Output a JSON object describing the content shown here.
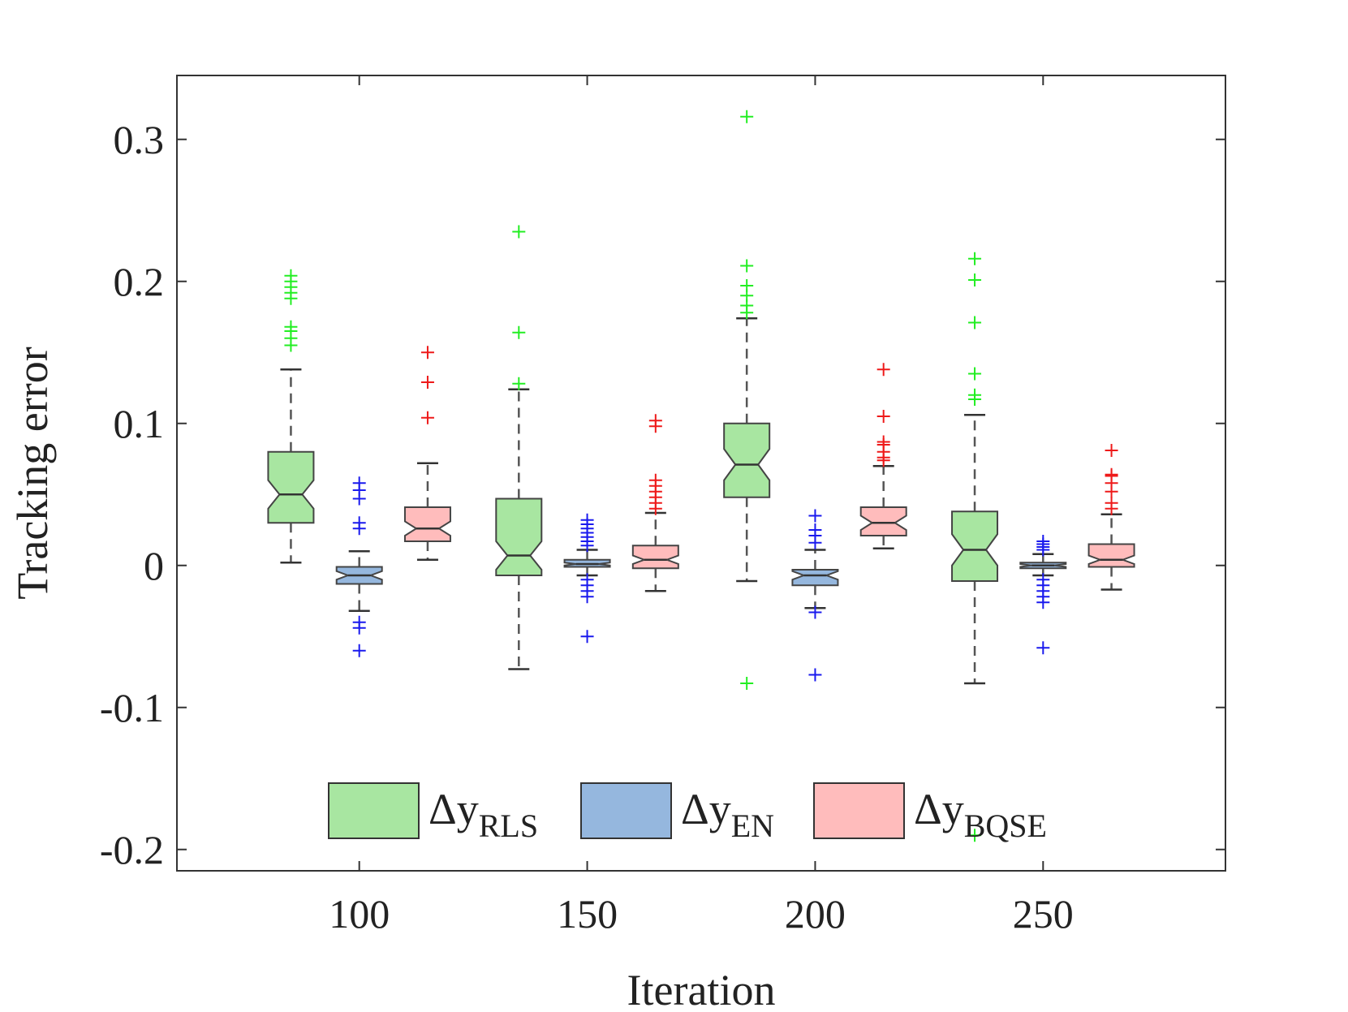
{
  "chart_data": {
    "type": "boxplot",
    "title": "",
    "xlabel": "Iteration",
    "ylabel": "Tracking error",
    "xlim": [
      60,
      290
    ],
    "ylim": [
      -0.215,
      0.345
    ],
    "xticks": [
      100,
      150,
      200,
      250
    ],
    "xtick_labels": [
      "100",
      "150",
      "200",
      "250"
    ],
    "yticks": [
      0.3,
      0.2,
      0.1,
      0,
      -0.1,
      -0.2
    ],
    "ytick_labels": [
      "0.3",
      "0.2",
      "0.1",
      "0",
      "-0.1",
      "-0.2"
    ],
    "grid": false,
    "legend": {
      "placement": "bottom-center",
      "entries": [
        {
          "series": "RLS",
          "symbol": "Δy",
          "subscript": "RLS",
          "color": "#a8e6a1"
        },
        {
          "series": "EN",
          "symbol": "Δy",
          "subscript": "EN",
          "color": "#95b7de"
        },
        {
          "series": "BQSE",
          "symbol": "Δy",
          "subscript": "BQSE",
          "color": "#ffbcbc"
        }
      ]
    },
    "series": [
      {
        "name": "RLS",
        "fill": "#a8e6a1",
        "outlier_color": "#22ee22"
      },
      {
        "name": "EN",
        "fill": "#95b7de",
        "outlier_color": "#1a1aee"
      },
      {
        "name": "BQSE",
        "fill": "#ffbcbc",
        "outlier_color": "#ee1a1a"
      }
    ],
    "boxes": [
      {
        "series": "RLS",
        "x": 85,
        "q1": 0.03,
        "median": 0.05,
        "q3": 0.08,
        "whisker_low": 0.002,
        "whisker_high": 0.138,
        "notch": [
          0.04,
          0.06
        ],
        "outliers": [
          0.155,
          0.16,
          0.165,
          0.168,
          0.188,
          0.192,
          0.196,
          0.2,
          0.204
        ]
      },
      {
        "series": "EN",
        "x": 100,
        "q1": -0.013,
        "median": -0.007,
        "q3": -0.001,
        "whisker_low": -0.032,
        "whisker_high": 0.01,
        "notch": [
          -0.01,
          -0.004
        ],
        "outliers": [
          0.026,
          0.03,
          0.047,
          0.053,
          0.058,
          -0.04,
          -0.044,
          -0.06
        ]
      },
      {
        "series": "BQSE",
        "x": 115,
        "q1": 0.017,
        "median": 0.026,
        "q3": 0.041,
        "whisker_low": 0.004,
        "whisker_high": 0.072,
        "notch": [
          0.021,
          0.031
        ],
        "outliers": [
          0.104,
          0.129,
          0.15
        ]
      },
      {
        "series": "RLS",
        "x": 135,
        "q1": -0.007,
        "median": 0.007,
        "q3": 0.047,
        "whisker_low": -0.073,
        "whisker_high": 0.124,
        "notch": [
          -0.003,
          0.017
        ],
        "outliers": [
          0.128,
          0.164,
          0.235
        ]
      },
      {
        "series": "EN",
        "x": 150,
        "q1": -0.001,
        "median": 0.001,
        "q3": 0.004,
        "whisker_low": -0.007,
        "whisker_high": 0.011,
        "notch": [
          0.0,
          0.002
        ],
        "outliers": [
          0.014,
          0.017,
          0.02,
          0.023,
          0.026,
          0.029,
          0.032,
          -0.01,
          -0.014,
          -0.018,
          -0.022,
          -0.05
        ]
      },
      {
        "series": "BQSE",
        "x": 165,
        "q1": -0.002,
        "median": 0.004,
        "q3": 0.014,
        "whisker_low": -0.018,
        "whisker_high": 0.037,
        "notch": [
          0.001,
          0.007
        ],
        "outliers": [
          0.04,
          0.044,
          0.048,
          0.052,
          0.056,
          0.06,
          0.098,
          0.102
        ]
      },
      {
        "series": "RLS",
        "x": 185,
        "q1": 0.048,
        "median": 0.071,
        "q3": 0.1,
        "whisker_low": -0.011,
        "whisker_high": 0.174,
        "notch": [
          0.06,
          0.082
        ],
        "outliers": [
          0.178,
          0.183,
          0.19,
          0.197,
          0.211,
          0.316,
          -0.083
        ]
      },
      {
        "series": "EN",
        "x": 200,
        "q1": -0.014,
        "median": -0.007,
        "q3": -0.003,
        "whisker_low": -0.03,
        "whisker_high": 0.011,
        "notch": [
          -0.01,
          -0.004
        ],
        "outliers": [
          0.016,
          0.021,
          0.025,
          0.035,
          -0.033,
          -0.077
        ]
      },
      {
        "series": "BQSE",
        "x": 215,
        "q1": 0.021,
        "median": 0.03,
        "q3": 0.041,
        "whisker_low": 0.012,
        "whisker_high": 0.07,
        "notch": [
          0.025,
          0.035
        ],
        "outliers": [
          0.074,
          0.076,
          0.08,
          0.085,
          0.087,
          0.105,
          0.138
        ]
      },
      {
        "series": "RLS",
        "x": 235,
        "q1": -0.011,
        "median": 0.011,
        "q3": 0.038,
        "whisker_low": -0.083,
        "whisker_high": 0.106,
        "notch": [
          0.0,
          0.022
        ],
        "outliers": [
          0.117,
          0.12,
          0.135,
          0.171,
          0.201,
          0.216,
          -0.19
        ]
      },
      {
        "series": "EN",
        "x": 250,
        "q1": -0.002,
        "median": 0.0,
        "q3": 0.002,
        "whisker_low": -0.007,
        "whisker_high": 0.008,
        "notch": [
          -0.001,
          0.001
        ],
        "outliers": [
          0.011,
          0.013,
          0.015,
          0.017,
          -0.01,
          -0.014,
          -0.018,
          -0.022,
          -0.026,
          -0.058
        ]
      },
      {
        "series": "BQSE",
        "x": 265,
        "q1": -0.001,
        "median": 0.004,
        "q3": 0.015,
        "whisker_low": -0.017,
        "whisker_high": 0.036,
        "notch": [
          0.001,
          0.007
        ],
        "outliers": [
          0.04,
          0.044,
          0.052,
          0.058,
          0.063,
          0.064,
          0.081
        ]
      }
    ]
  }
}
